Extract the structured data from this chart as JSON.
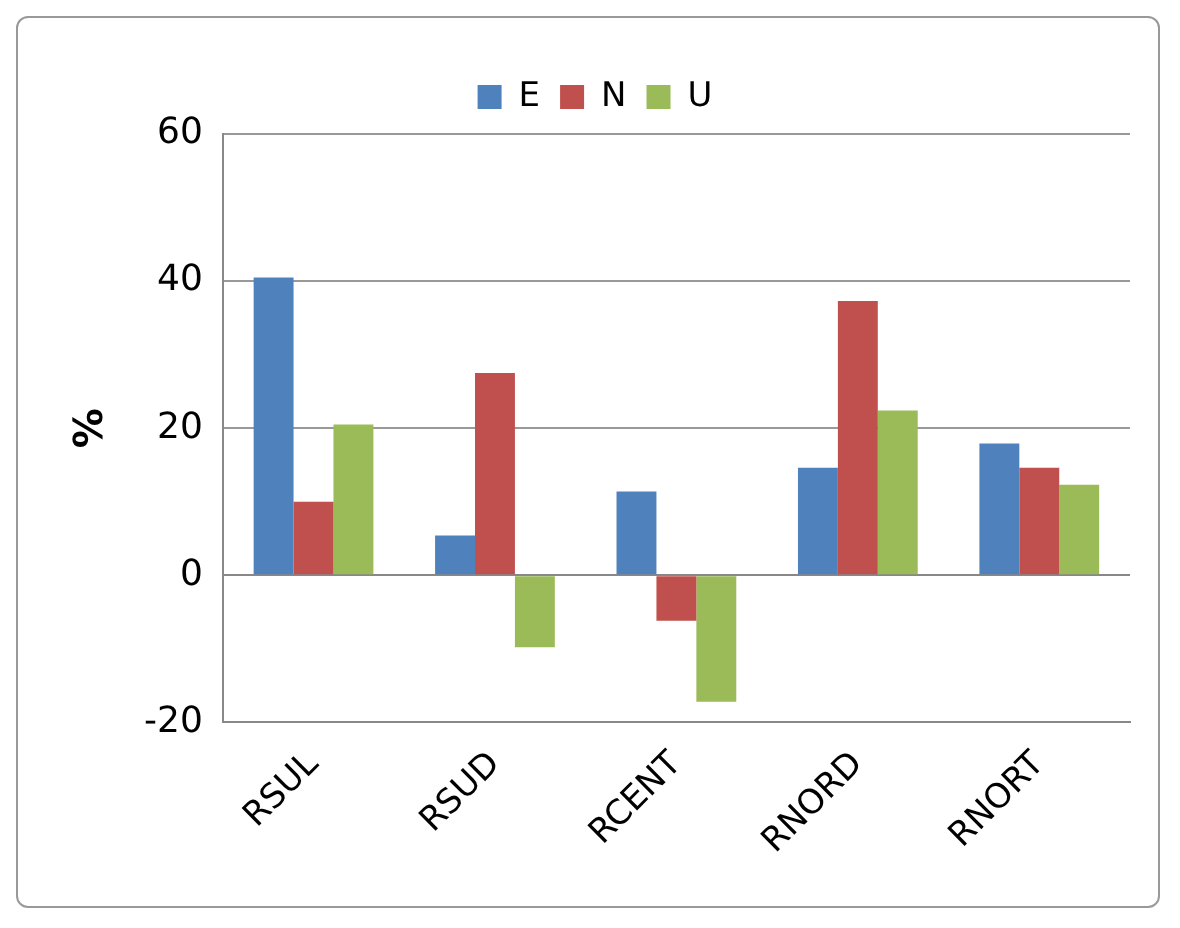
{
  "chart_data": {
    "type": "bar",
    "ylabel": "%",
    "categories": [
      "RSUL",
      "RSUD",
      "RCENT",
      "RNORD",
      "RNORT"
    ],
    "series": [
      {
        "name": "E",
        "color": "#4f81bd",
        "values": [
          40.5,
          5.4,
          11.4,
          14.6,
          17.9
        ]
      },
      {
        "name": "N",
        "color": "#c0504d",
        "values": [
          10,
          27.5,
          -6.2,
          37.3,
          14.6
        ]
      },
      {
        "name": "U",
        "color": "#9bbb59",
        "values": [
          20.5,
          -9.8,
          -17.2,
          22.4,
          12.3
        ]
      }
    ],
    "ylim": [
      -20,
      60
    ],
    "yticks": [
      -20,
      0,
      20,
      40,
      60
    ],
    "grid": "y",
    "legend": "top"
  }
}
